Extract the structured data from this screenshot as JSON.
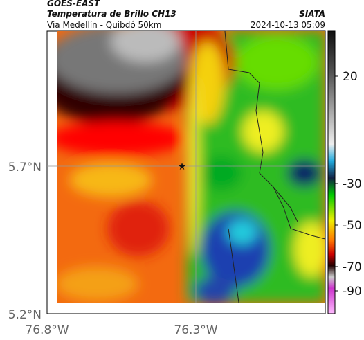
{
  "header": {
    "satellite": "GOES-EAST",
    "title": "Temperatura de Brillo CH13",
    "source": "SIATA",
    "subtitle": "Via Medellín - Quibdó 50km",
    "datetime": "2024-10-13 05:09"
  },
  "map": {
    "lat_labels": [
      "5.7°N",
      "5.2°N"
    ],
    "lon_labels": [
      "76.8°W",
      "76.3°W"
    ]
  },
  "colorbar": {
    "ticks": [
      "20",
      "-30",
      "-50",
      "-70",
      "-90"
    ]
  }
}
